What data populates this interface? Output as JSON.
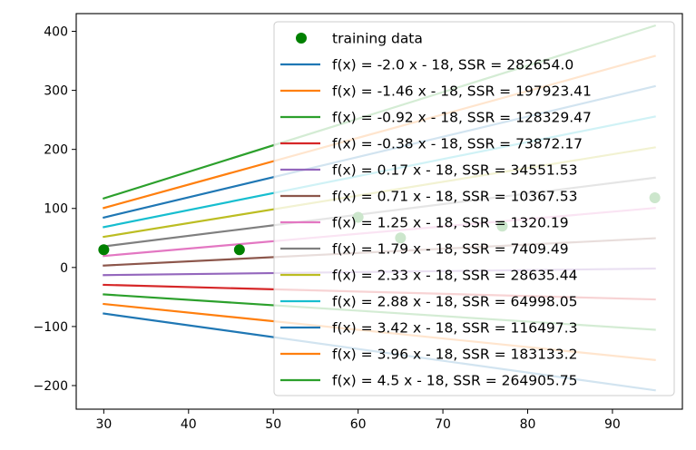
{
  "chart_data": {
    "type": "line",
    "title": "",
    "xlabel": "",
    "ylabel": "",
    "xlim": [
      26.75,
      98.25
    ],
    "ylim": [
      -240,
      430
    ],
    "x_ticks": [
      30,
      40,
      50,
      60,
      70,
      80,
      90
    ],
    "y_ticks": [
      -200,
      -100,
      0,
      100,
      200,
      300,
      400
    ],
    "grid": false,
    "legend_position": "upper right",
    "scatter": {
      "name": "training data",
      "color": "#008000",
      "x": [
        30,
        46,
        60,
        65,
        77,
        95
      ],
      "y": [
        30,
        30,
        85,
        50,
        70,
        118
      ]
    },
    "series": [
      {
        "name": "f(x) = -2.0 x - 18, SSR = 282654.0",
        "slope": -2.0,
        "intercept": -18,
        "x_range": [
          30,
          95
        ],
        "color": "#1f77b4"
      },
      {
        "name": "f(x) = -1.46 x - 18, SSR = 197923.41",
        "slope": -1.46,
        "intercept": -18,
        "x_range": [
          30,
          95
        ],
        "color": "#ff7f0e"
      },
      {
        "name": "f(x) = -0.92 x - 18, SSR = 128329.47",
        "slope": -0.92,
        "intercept": -18,
        "x_range": [
          30,
          95
        ],
        "color": "#2ca02c"
      },
      {
        "name": "f(x) = -0.38 x - 18, SSR = 73872.17",
        "slope": -0.38,
        "intercept": -18,
        "x_range": [
          30,
          95
        ],
        "color": "#d62728"
      },
      {
        "name": "f(x) = 0.17 x - 18, SSR = 34551.53",
        "slope": 0.17,
        "intercept": -18,
        "x_range": [
          30,
          95
        ],
        "color": "#9467bd"
      },
      {
        "name": "f(x) = 0.71 x - 18, SSR = 10367.53",
        "slope": 0.71,
        "intercept": -18,
        "x_range": [
          30,
          95
        ],
        "color": "#8c564b"
      },
      {
        "name": "f(x) = 1.25 x - 18, SSR = 1320.19",
        "slope": 1.25,
        "intercept": -18,
        "x_range": [
          30,
          95
        ],
        "color": "#e377c2"
      },
      {
        "name": "f(x) = 1.79 x - 18, SSR = 7409.49",
        "slope": 1.79,
        "intercept": -18,
        "x_range": [
          30,
          95
        ],
        "color": "#7f7f7f"
      },
      {
        "name": "f(x) = 2.33 x - 18, SSR = 28635.44",
        "slope": 2.33,
        "intercept": -18,
        "x_range": [
          30,
          95
        ],
        "color": "#bcbd22"
      },
      {
        "name": "f(x) = 2.88 x - 18, SSR = 64998.05",
        "slope": 2.88,
        "intercept": -18,
        "x_range": [
          30,
          95
        ],
        "color": "#17becf"
      },
      {
        "name": "f(x) = 3.42 x - 18, SSR = 116497.3",
        "slope": 3.42,
        "intercept": -18,
        "x_range": [
          30,
          95
        ],
        "color": "#1f77b4"
      },
      {
        "name": "f(x) = 3.96 x - 18, SSR = 183133.2",
        "slope": 3.96,
        "intercept": -18,
        "x_range": [
          30,
          95
        ],
        "color": "#ff7f0e"
      },
      {
        "name": "f(x) = 4.5 x - 18, SSR = 264905.75",
        "slope": 4.5,
        "intercept": -18,
        "x_range": [
          30,
          95
        ],
        "color": "#2ca02c"
      }
    ]
  }
}
